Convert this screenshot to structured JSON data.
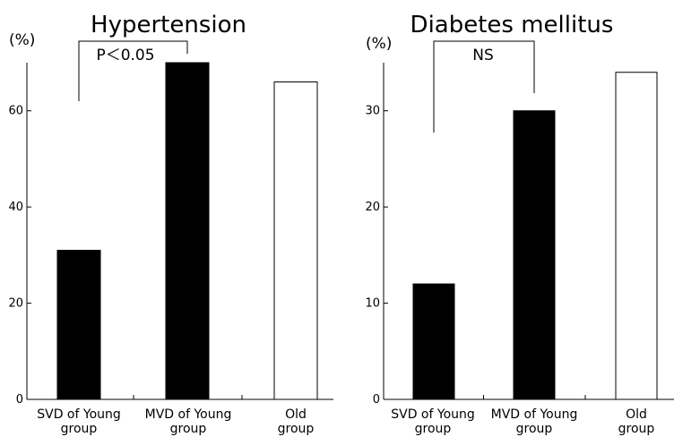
{
  "chart_data": [
    {
      "type": "bar",
      "title": "Hypertension",
      "ylabel": "(%)",
      "categories": [
        "SVD of Young group",
        "MVD of Young group",
        "Old group"
      ],
      "category_lines": [
        [
          "SVD of Young",
          "group"
        ],
        [
          "MVD of Young",
          "group"
        ],
        [
          "Old",
          "group"
        ]
      ],
      "values": [
        31,
        70,
        66
      ],
      "bar_fills": [
        "#000000",
        "#000000",
        "#ffffff"
      ],
      "ylim": [
        0,
        70
      ],
      "yticks": [
        0,
        20,
        40,
        60
      ],
      "significance": {
        "label": "P＜0.05",
        "from": 0,
        "to": 1
      }
    },
    {
      "type": "bar",
      "title": "Diabetes mellitus",
      "ylabel": "(%)",
      "categories": [
        "SVD of Young group",
        "MVD of Young group",
        "Old group"
      ],
      "category_lines": [
        [
          "SVD of Young",
          "group"
        ],
        [
          "MVD of Young",
          "group"
        ],
        [
          "Old",
          "group"
        ]
      ],
      "values": [
        12,
        30,
        34
      ],
      "bar_fills": [
        "#000000",
        "#000000",
        "#ffffff"
      ],
      "ylim": [
        0,
        35
      ],
      "yticks": [
        0,
        10,
        20,
        30
      ],
      "significance": {
        "label": "NS",
        "from": 0,
        "to": 1
      }
    }
  ]
}
